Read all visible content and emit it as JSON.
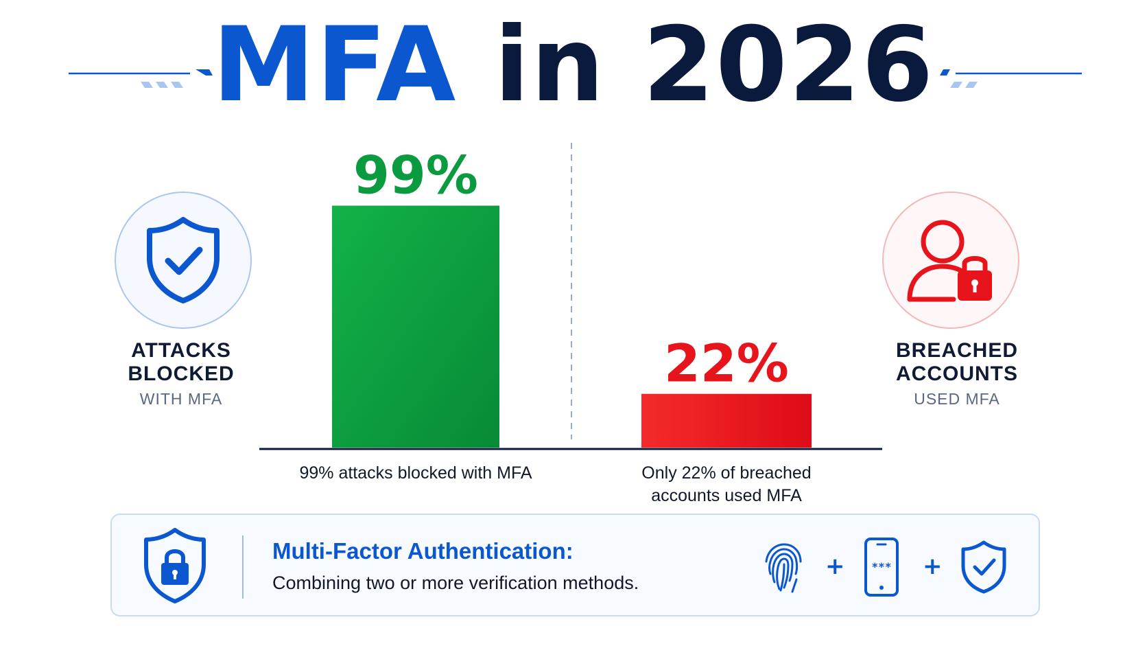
{
  "title": {
    "part1": "MFA",
    "part2": " in 2026"
  },
  "left_panel": {
    "icon": "shield-check-icon",
    "label_line1": "ATTACKS",
    "label_line2": "BLOCKED",
    "sublabel": "WITH MFA"
  },
  "right_panel": {
    "icon": "user-lock-icon",
    "label_line1": "BREACHED",
    "label_line2": "ACCOUNTS",
    "sublabel": "USED MFA"
  },
  "chart_data": {
    "type": "bar",
    "categories": [
      "99% attacks blocked with MFA",
      "Only 22% of breached accounts used MFA"
    ],
    "values": [
      99,
      22
    ],
    "data_labels": [
      "99%",
      "22%"
    ],
    "unit": "%",
    "ylim": [
      0,
      100
    ],
    "colors": [
      "#0a9a3f",
      "#e8141c"
    ],
    "grid": false,
    "xlabel": "",
    "ylabel": ""
  },
  "info": {
    "title": "Multi-Factor Authentication:",
    "subtitle": "Combining two or more verification methods.",
    "icons": [
      "shield-lock-icon",
      "fingerprint-icon",
      "phone-code-icon",
      "shield-check-icon"
    ],
    "plus": "+",
    "phone_code": "***"
  },
  "colors": {
    "brand_blue": "#0b57d0",
    "navy": "#0a1a3c",
    "green": "#0a9a3f",
    "red": "#e8141c"
  }
}
